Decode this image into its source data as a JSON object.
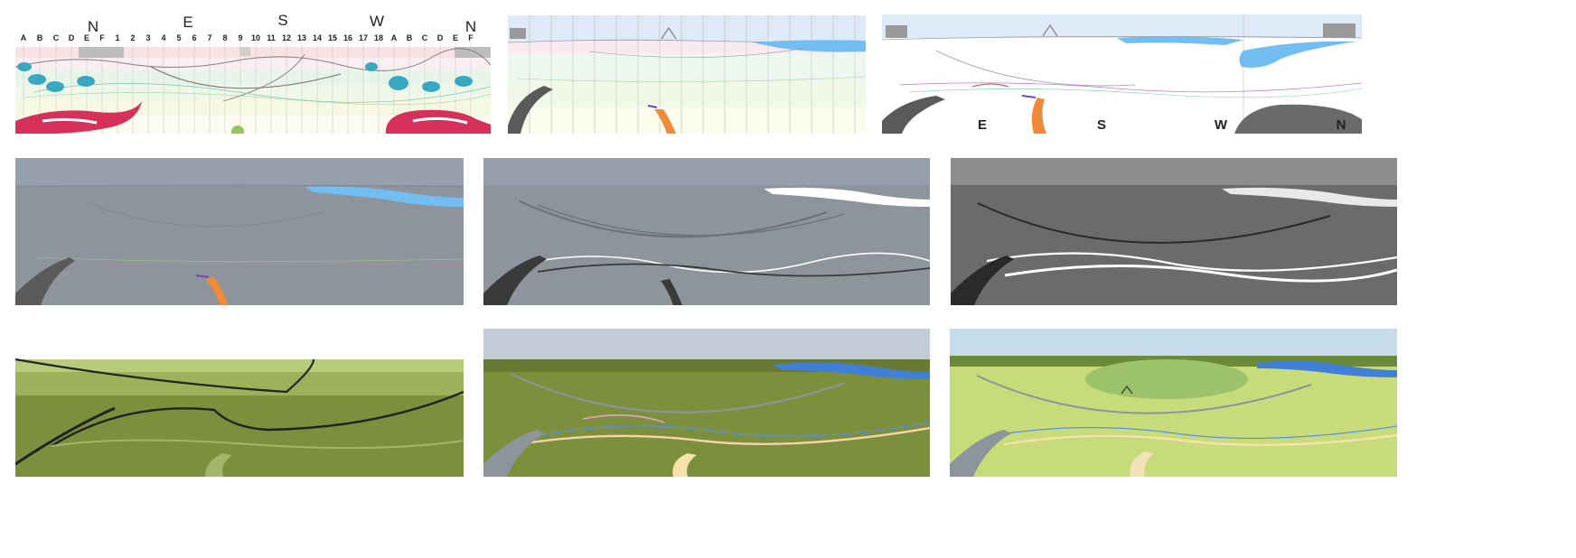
{
  "panel1": {
    "compass": [
      "N",
      "E",
      "S",
      "W",
      "N"
    ],
    "grid_labels": [
      "A",
      "B",
      "C",
      "D",
      "E",
      "F",
      "1",
      "2",
      "3",
      "4",
      "5",
      "6",
      "7",
      "8",
      "9",
      "10",
      "11",
      "12",
      "13",
      "14",
      "15",
      "16",
      "17",
      "18",
      "A",
      "B",
      "C",
      "D",
      "E",
      "F"
    ]
  },
  "panel3": {
    "compass": [
      "E",
      "S",
      "W",
      "N"
    ]
  },
  "colors": {
    "sky_blue": "#dde9f7",
    "water_blue": "#72bdf2",
    "magenta": "#d9305d",
    "teal": "#46b3c4",
    "grey_panel": "#8e949b",
    "dark_grey_panel": "#6b6b6b",
    "olive": "#7b8f3c",
    "lime": "#c7db7a",
    "orange": "#ef8a3b"
  }
}
